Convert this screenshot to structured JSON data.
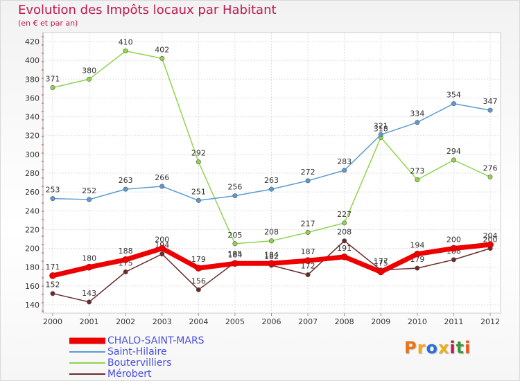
{
  "title": "Evolution des Impôts locaux par Habitant",
  "subtitle": "(en € et par an)",
  "logo": {
    "text": "Proxiti",
    "colors": [
      "#e8731a",
      "#f0a81c",
      "#2b6fd6",
      "#e8b21a",
      "#c0184f",
      "#3a9a3a",
      "#e85a1a"
    ]
  },
  "chart_data": {
    "type": "line",
    "title": "Evolution des Impôts locaux par Habitant",
    "subtitle": "(en € et par an)",
    "x": [
      "2000",
      "2001",
      "2002",
      "2003",
      "2004",
      "2005",
      "2006",
      "2007",
      "2008",
      "2009",
      "2010",
      "2011",
      "2012"
    ],
    "ylim": [
      140,
      420
    ],
    "yticks": [
      140,
      160,
      180,
      200,
      220,
      240,
      260,
      280,
      300,
      320,
      340,
      360,
      380,
      400,
      420
    ],
    "grid": true,
    "legend_position": "bottom-left",
    "series": [
      {
        "name": "CHALO-SAINT-MARS",
        "color": "#ee0000",
        "values": [
          171,
          180,
          188,
          200,
          179,
          184,
          184,
          187,
          191,
          175,
          194,
          200,
          204
        ]
      },
      {
        "name": "Saint-Hilaire",
        "color": "#5c9bd1",
        "values": [
          253,
          252,
          263,
          266,
          251,
          256,
          263,
          272,
          283,
          321,
          334,
          354,
          347
        ]
      },
      {
        "name": "Boutervilliers",
        "color": "#8fd44a",
        "values": [
          371,
          380,
          410,
          402,
          292,
          205,
          208,
          217,
          227,
          318,
          273,
          294,
          276
        ]
      },
      {
        "name": "Mérobert",
        "color": "#6b2a2a",
        "values": [
          152,
          143,
          175,
          194,
          156,
          185,
          182,
          172,
          208,
          177,
          179,
          188,
          200
        ]
      }
    ]
  }
}
